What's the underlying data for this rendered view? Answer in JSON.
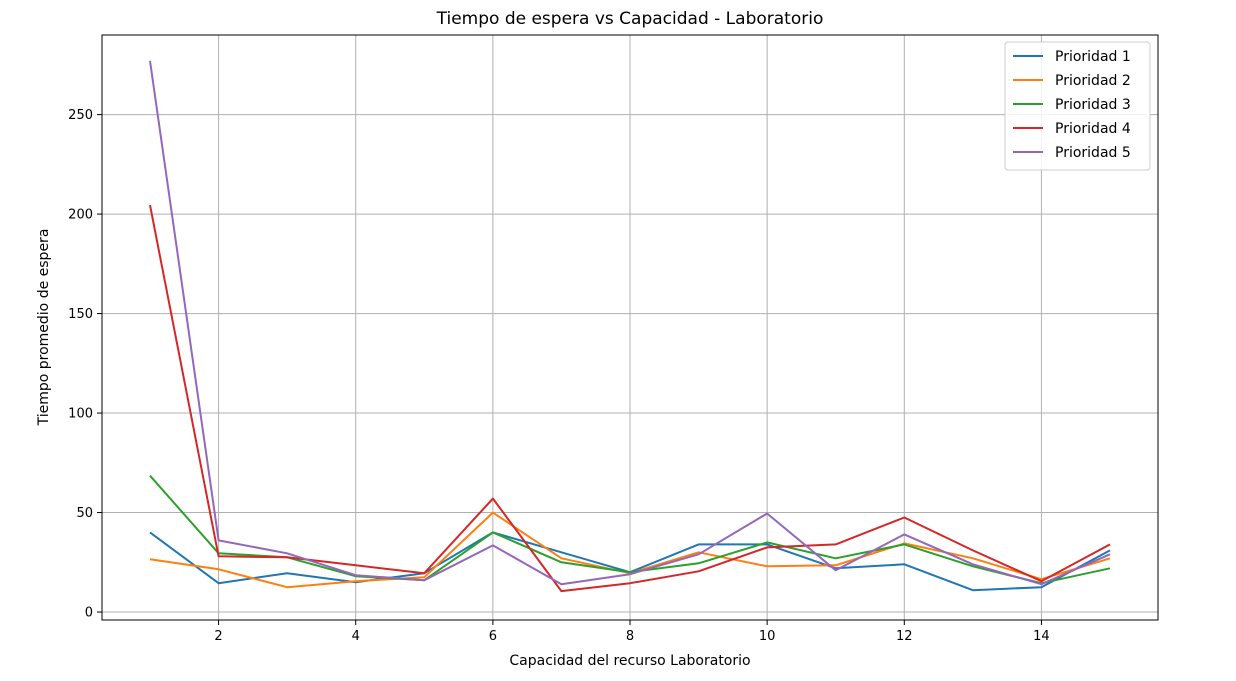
{
  "chart_data": {
    "type": "line",
    "title": "Tiempo de espera vs Capacidad - Laboratorio",
    "xlabel": "Capacidad del recurso Laboratorio",
    "ylabel": "Tiempo promedio de espera",
    "x": [
      1,
      2,
      3,
      4,
      5,
      6,
      7,
      8,
      9,
      10,
      11,
      12,
      13,
      14,
      15
    ],
    "xlim": [
      0.3,
      15.7
    ],
    "ylim": [
      -4,
      290
    ],
    "xticks": [
      2,
      4,
      6,
      8,
      10,
      12,
      14
    ],
    "yticks": [
      0,
      50,
      100,
      150,
      200,
      250
    ],
    "grid": true,
    "legend_position": "top-right",
    "series": [
      {
        "name": "Prioridad 1",
        "color": "#1f77b4",
        "values": [
          40,
          14.5,
          19.5,
          15,
          19.5,
          40,
          30,
          20,
          34,
          34,
          22,
          24,
          11,
          12.5,
          31
        ]
      },
      {
        "name": "Prioridad 2",
        "color": "#ff7f0e",
        "values": [
          26.5,
          21.5,
          12.5,
          15.5,
          17.5,
          50,
          27,
          19.5,
          30,
          23,
          23.5,
          34.5,
          27,
          16.5,
          27
        ]
      },
      {
        "name": "Prioridad 3",
        "color": "#2ca02c",
        "values": [
          68.5,
          29.5,
          27.5,
          18,
          16,
          40,
          25,
          20,
          24.5,
          35,
          27,
          34,
          23,
          14.5,
          22
        ]
      },
      {
        "name": "Prioridad 4",
        "color": "#d62728",
        "values": [
          204.5,
          28,
          27.5,
          23.5,
          19.5,
          57,
          10.5,
          14.5,
          20.5,
          32.5,
          34,
          47.5,
          31,
          15.5,
          34
        ]
      },
      {
        "name": "Prioridad 5",
        "color": "#9467bd",
        "values": [
          277,
          36,
          29.5,
          18.5,
          16,
          33.5,
          14,
          19,
          29,
          49.5,
          21,
          39,
          24,
          14,
          29
        ]
      }
    ]
  }
}
